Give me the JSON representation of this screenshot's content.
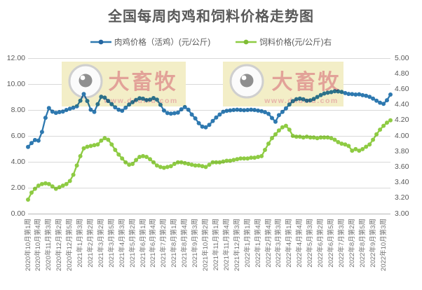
{
  "title": "全国每周肉鸡和饲料价格走势图",
  "watermark": {
    "brand": "大畜牧",
    "url": "www.dxumu.com"
  },
  "colors": {
    "broiler_line": "#2e79b0",
    "feed_line": "#8ecb43",
    "grid": "#d9d9d9",
    "axis_line": "#b7b7b7",
    "tick_text": "#595959",
    "xlabel_text": "#737373",
    "title_text": "#595959",
    "watermark_bg": "#f3eec7",
    "watermark_brand": "#e2a298",
    "watermark_url": "#e7b3aa",
    "logo_ring": "#cfcfcf",
    "logo_pupil": "#8f8f8f"
  },
  "chart_data": {
    "type": "line",
    "title": "全国每周肉鸡和饲料价格走势图",
    "legend_position": "top",
    "grid": true,
    "label_step": 3,
    "x_labels": [
      "2020年10月第1周",
      "2020年10月第4周",
      "2020年11月第3周",
      "2020年12月第2周",
      "2020年12月第5周",
      "2021年1月第3周",
      "2021年2月第2周",
      "2021年3月第2周",
      "2021年3月第5周",
      "2021年4月第3周",
      "2021年5月第2周",
      "2021年6月第1周",
      "2021年6月第4周",
      "2021年7月第2周",
      "2021年8月第1周",
      "2021年8月第4周",
      "2021年9月第3周",
      "2021年10月第2周",
      "2021年11月第1周",
      "2021年11月第4周",
      "2021年12月第3周",
      "2022年1月第1周",
      "2022年1月第4周",
      "2022年2月第4周",
      "2022年3月第3周",
      "2022年4月第1周",
      "2022年4月第4周",
      "2022年5月第3周",
      "2022年6月第2周",
      "2022年6月第5周",
      "2022年7月第3周",
      "2022年8月第2周",
      "2022年8月第5周",
      "2022年9月第3周",
      "2022年10月第3周"
    ],
    "left_axis": {
      "min": 0,
      "max": 12,
      "tick_values": [
        0,
        2,
        4,
        6,
        8,
        10,
        12
      ],
      "tick_labels": [
        "0.00",
        "2.00",
        "4.00",
        "6.00",
        "8.00",
        "10.00",
        "12.00"
      ]
    },
    "right_axis": {
      "min": 3,
      "max": 5,
      "tick_values": [
        3.0,
        3.2,
        3.4,
        3.6,
        3.8,
        4.0,
        4.2,
        4.4,
        4.6,
        4.8,
        5.0
      ],
      "tick_labels": [
        "3.00",
        "3.20",
        "3.40",
        "3.60",
        "3.80",
        "4.00",
        "4.20",
        "4.40",
        "4.60",
        "4.80",
        "5.00"
      ]
    },
    "series": [
      {
        "id": "broiler-price",
        "name": "肉鸡价格（活鸡）(元/公斤)",
        "axis": "left",
        "color": "#2e79b0",
        "values": [
          5.15,
          5.45,
          5.68,
          5.63,
          6.3,
          7.4,
          8.15,
          7.87,
          7.78,
          7.84,
          7.88,
          8.0,
          8.1,
          8.18,
          8.28,
          8.72,
          9.23,
          8.7,
          8.02,
          7.85,
          8.45,
          9.02,
          8.95,
          8.7,
          8.45,
          8.2,
          8.02,
          7.94,
          8.18,
          8.42,
          8.6,
          8.78,
          8.9,
          8.87,
          8.76,
          8.8,
          8.92,
          8.8,
          8.4,
          7.96,
          7.76,
          7.72,
          7.75,
          7.8,
          8.05,
          8.22,
          8.02,
          7.65,
          7.35,
          6.98,
          6.72,
          6.66,
          6.85,
          7.15,
          7.42,
          7.65,
          7.86,
          7.93,
          7.97,
          8.0,
          8.02,
          8.0,
          7.98,
          8.0,
          8.02,
          8.0,
          7.95,
          7.9,
          7.83,
          7.7,
          7.38,
          7.1,
          7.6,
          7.85,
          8.12,
          8.42,
          8.68,
          8.83,
          8.88,
          8.82,
          8.72,
          8.74,
          8.85,
          9.0,
          9.15,
          9.27,
          9.33,
          9.38,
          9.45,
          9.43,
          9.39,
          9.3,
          9.24,
          9.22,
          9.19,
          9.21,
          9.14,
          9.1,
          9.01,
          8.88,
          8.72,
          8.56,
          8.47,
          8.75,
          9.19
        ]
      },
      {
        "id": "feed-price",
        "name": "饲料价格(元/公斤)右",
        "axis": "right",
        "color": "#8ecb43",
        "values": [
          3.18,
          3.27,
          3.32,
          3.36,
          3.38,
          3.39,
          3.38,
          3.35,
          3.32,
          3.34,
          3.36,
          3.38,
          3.42,
          3.5,
          3.62,
          3.74,
          3.84,
          3.86,
          3.87,
          3.88,
          3.89,
          3.94,
          3.97,
          3.95,
          3.89,
          3.82,
          3.76,
          3.71,
          3.66,
          3.63,
          3.64,
          3.69,
          3.73,
          3.74,
          3.73,
          3.7,
          3.66,
          3.62,
          3.6,
          3.59,
          3.6,
          3.61,
          3.64,
          3.66,
          3.66,
          3.65,
          3.64,
          3.63,
          3.62,
          3.62,
          3.61,
          3.6,
          3.63,
          3.66,
          3.66,
          3.66,
          3.67,
          3.68,
          3.68,
          3.69,
          3.7,
          3.71,
          3.71,
          3.71,
          3.72,
          3.72,
          3.73,
          3.74,
          3.82,
          3.9,
          3.97,
          4.02,
          4.07,
          4.11,
          4.13,
          4.08,
          4.0,
          3.99,
          3.99,
          3.98,
          3.99,
          3.98,
          3.98,
          3.97,
          3.98,
          3.98,
          3.98,
          3.97,
          3.95,
          3.92,
          3.9,
          3.89,
          3.87,
          3.81,
          3.83,
          3.81,
          3.83,
          3.86,
          3.89,
          3.95,
          4.02,
          4.08,
          4.13,
          4.17,
          4.2
        ]
      }
    ]
  }
}
